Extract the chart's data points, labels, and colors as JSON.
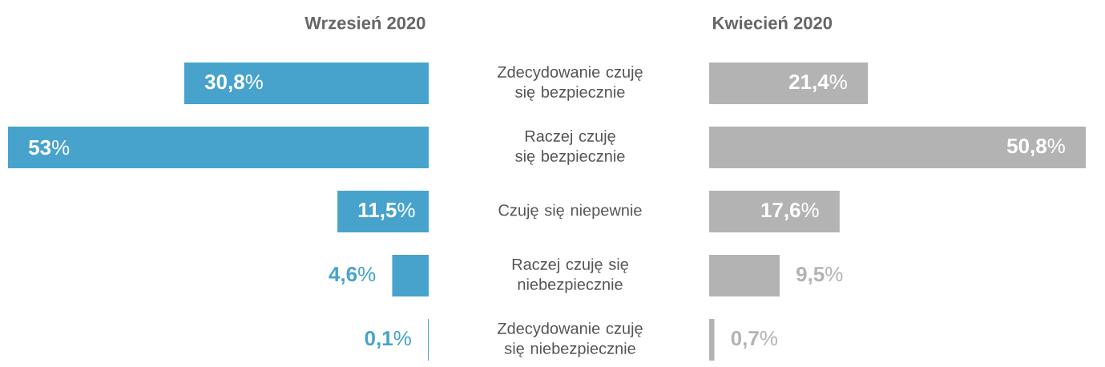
{
  "chart_data": [
    {
      "type": "bar",
      "orientation": "horizontal",
      "title": "Wrzesień 2020",
      "categories": [
        "Zdecydowanie czuję się bezpiecznie",
        "Raczej czuję się bezpiecznie",
        "Czuję się niepewnie",
        "Raczej czuję się niebezpiecznie",
        "Zdecydowanie czuję się niebezpiecznie"
      ],
      "values": [
        30.8,
        53,
        11.5,
        4.6,
        0.1
      ],
      "value_labels": [
        "**30,8**%",
        "**53**%",
        "**11,5**%",
        "**4,6**%",
        "**0,1**%"
      ],
      "color": "#47a3cc",
      "xlim": [
        53,
        0
      ],
      "tick_labels": "y"
    },
    {
      "type": "bar",
      "orientation": "horizontal",
      "title": "Kwiecień 2020",
      "categories": [
        null,
        null,
        null,
        null,
        null
      ],
      "values": [
        21.4,
        50.8,
        17.6,
        9.5,
        0.7
      ],
      "value_labels": [
        "**21,4**%",
        "**50,8**%",
        "**17,6**%",
        "**9,5**%",
        "**0,7**%"
      ],
      "color": "#b3b3b3",
      "xlim": [
        0,
        50.8
      ],
      "tick_labels": false
    }
  ]
}
